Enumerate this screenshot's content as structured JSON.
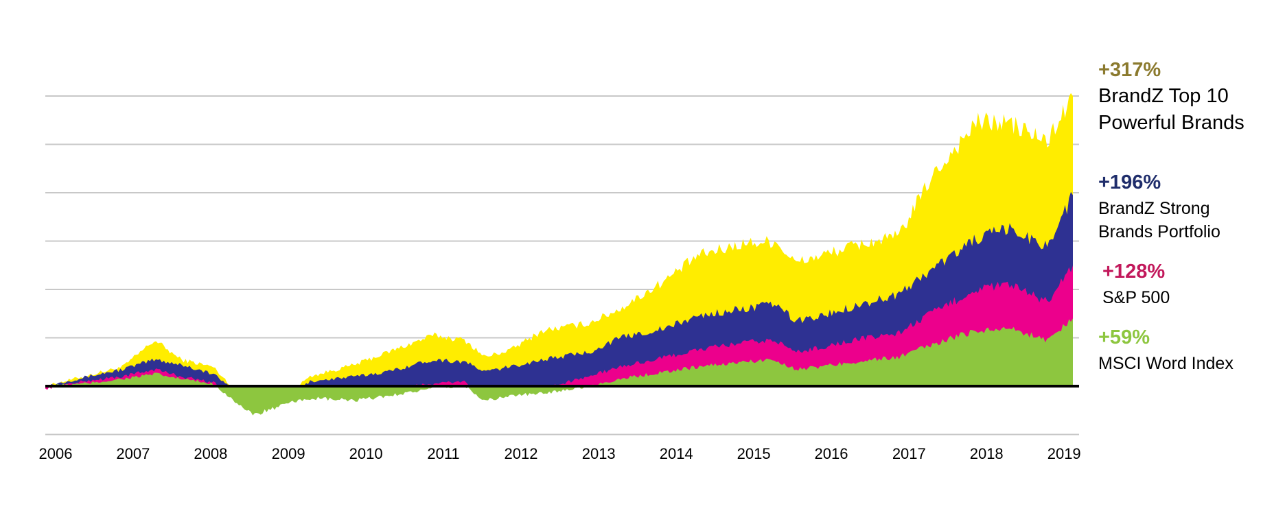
{
  "chart_data": {
    "type": "area",
    "x_ticks": [
      "2006",
      "2007",
      "2008",
      "2009",
      "2010",
      "2011",
      "2012",
      "2013",
      "2014",
      "2015",
      "2016",
      "2017",
      "2018",
      "2019"
    ],
    "xlim": [
      "2006-01-01",
      "2019-04-30"
    ],
    "ylim": [
      -100,
      600
    ],
    "grid": true,
    "baseline": 0,
    "x": [
      "2006-01",
      "2006-07",
      "2007-01",
      "2007-06",
      "2007-10",
      "2008-03",
      "2008-09",
      "2009-03",
      "2009-06",
      "2010-01",
      "2010-06",
      "2011-01",
      "2011-06",
      "2011-09",
      "2012-01",
      "2012-06",
      "2013-01",
      "2013-06",
      "2014-01",
      "2014-06",
      "2015-01",
      "2015-06",
      "2015-09",
      "2016-01",
      "2016-06",
      "2017-01",
      "2017-06",
      "2018-01",
      "2018-06",
      "2018-12",
      "2019-04"
    ],
    "series": [
      {
        "name": "BrandZ Top 10 Powerful Brands",
        "change": "+317%",
        "color": "#FFED00",
        "label_color": "#8B7A2E",
        "values": [
          0,
          20,
          40,
          95,
          55,
          40,
          -45,
          -10,
          20,
          45,
          70,
          105,
          95,
          60,
          75,
          115,
          130,
          160,
          220,
          270,
          295,
          300,
          255,
          270,
          290,
          310,
          430,
          545,
          545,
          505,
          600
        ]
      },
      {
        "name": "BrandZ Strong Brands Portfolio",
        "change": "+196%",
        "color": "#2E3192",
        "label_color": "#1F2D6B",
        "values": [
          0,
          18,
          35,
          55,
          45,
          25,
          -35,
          -20,
          10,
          20,
          30,
          55,
          50,
          30,
          40,
          55,
          70,
          100,
          120,
          145,
          160,
          170,
          135,
          145,
          165,
          190,
          240,
          305,
          325,
          290,
          395
        ]
      },
      {
        "name": "S&P 500",
        "change": "+128%",
        "color": "#EC008C",
        "label_color": "#C2185B",
        "values": [
          -5,
          10,
          20,
          35,
          20,
          8,
          -50,
          -25,
          -15,
          -20,
          -5,
          5,
          10,
          -20,
          -10,
          -5,
          20,
          40,
          60,
          75,
          90,
          95,
          70,
          80,
          95,
          110,
          150,
          200,
          210,
          175,
          250
        ]
      },
      {
        "name": "MSCI Word Index",
        "change": "+59%",
        "color": "#8DC63F",
        "label_color": "#8DC63F",
        "values": [
          0,
          5,
          15,
          25,
          15,
          5,
          -60,
          -35,
          -25,
          -30,
          -20,
          -5,
          0,
          -30,
          -20,
          -15,
          0,
          15,
          30,
          40,
          50,
          55,
          35,
          40,
          50,
          60,
          85,
          115,
          120,
          95,
          140
        ]
      }
    ]
  }
}
